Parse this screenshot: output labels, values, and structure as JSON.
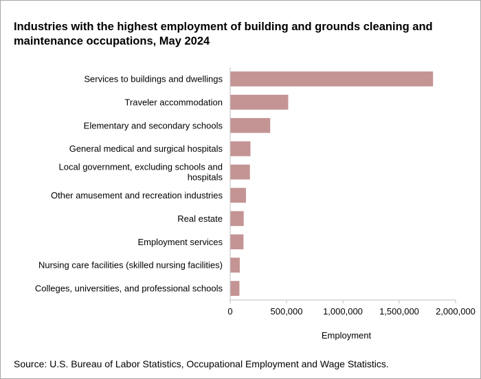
{
  "chart_data": {
    "type": "bar",
    "orientation": "horizontal",
    "title": "Industries with the highest employment of building and grounds cleaning and maintenance occupations, May 2024",
    "categories": [
      "Services to buildings and dwellings",
      "Traveler accommodation",
      "Elementary and secondary schools",
      "General medical and surgical hospitals",
      "Local government, excluding schools and hospitals",
      "Other amusement and recreation industries",
      "Real estate",
      "Employment services",
      "Nursing care facilities (skilled nursing facilities)",
      "Colleges, universities, and professional schools"
    ],
    "category_lines": [
      [
        "Services to buildings and dwellings"
      ],
      [
        "Traveler accommodation"
      ],
      [
        "Elementary and secondary schools"
      ],
      [
        "General medical and surgical hospitals"
      ],
      [
        "Local government, excluding schools and",
        "hospitals"
      ],
      [
        "Other amusement and recreation industries"
      ],
      [
        "Real estate"
      ],
      [
        "Employment services"
      ],
      [
        "Nursing care facilities (skilled nursing facilities)"
      ],
      [
        "Colleges, universities, and professional schools"
      ]
    ],
    "values": [
      1800000,
      515000,
      355000,
      180000,
      175000,
      140000,
      120000,
      118000,
      85000,
      82000
    ],
    "xlabel": "Employment",
    "ylabel": "",
    "xlim": [
      0,
      2000000
    ],
    "xticks": [
      0,
      500000,
      1000000,
      1500000,
      2000000
    ],
    "xtick_labels": [
      "0",
      "500,000",
      "1,000,000",
      "1,500,000",
      "2,000,000"
    ],
    "grid": false,
    "bar_color": "#c49494",
    "axis_color": "#bfbfbf"
  },
  "source": "Source: U.S. Bureau of Labor Statistics, Occupational Employment and Wage Statistics."
}
